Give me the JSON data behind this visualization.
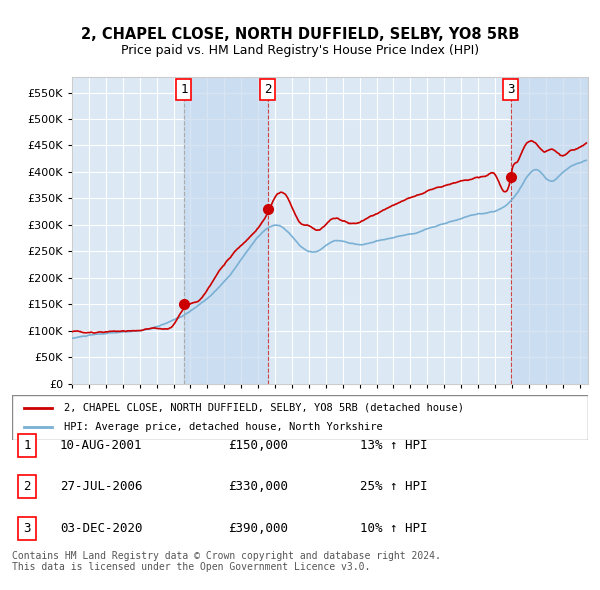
{
  "title": "2, CHAPEL CLOSE, NORTH DUFFIELD, SELBY, YO8 5RB",
  "subtitle": "Price paid vs. HM Land Registry's House Price Index (HPI)",
  "legend_line1": "2, CHAPEL CLOSE, NORTH DUFFIELD, SELBY, YO8 5RB (detached house)",
  "legend_line2": "HPI: Average price, detached house, North Yorkshire",
  "table_rows": [
    {
      "num": 1,
      "date": "10-AUG-2001",
      "price": "£150,000",
      "hpi": "13% ↑ HPI"
    },
    {
      "num": 2,
      "date": "27-JUL-2006",
      "price": "£330,000",
      "hpi": "25% ↑ HPI"
    },
    {
      "num": 3,
      "date": "03-DEC-2020",
      "price": "£390,000",
      "hpi": "10% ↑ HPI"
    }
  ],
  "footer": "Contains HM Land Registry data © Crown copyright and database right 2024.\nThis data is licensed under the Open Government Licence v3.0.",
  "sale_dates_num": [
    2001.61,
    2006.57,
    2020.92
  ],
  "sale_prices": [
    150000,
    330000,
    390000
  ],
  "sale_markers": [
    1,
    2,
    3
  ],
  "vline1_x": 2001.61,
  "vline2_x": 2006.57,
  "vline3_x": 2020.92,
  "ylim": [
    0,
    580000
  ],
  "xlim_start": 1995.0,
  "xlim_end": 2025.5,
  "background_color": "#ffffff",
  "plot_bg_color": "#dce9f5",
  "shade_color": "#c5d9ef",
  "grid_color": "#ffffff",
  "red_line_color": "#cc0000",
  "blue_line_color": "#7ab0d4",
  "sale_dot_color": "#cc0000",
  "vline_gray_color": "#aaaaaa",
  "vline_red_color": "#cc4444"
}
